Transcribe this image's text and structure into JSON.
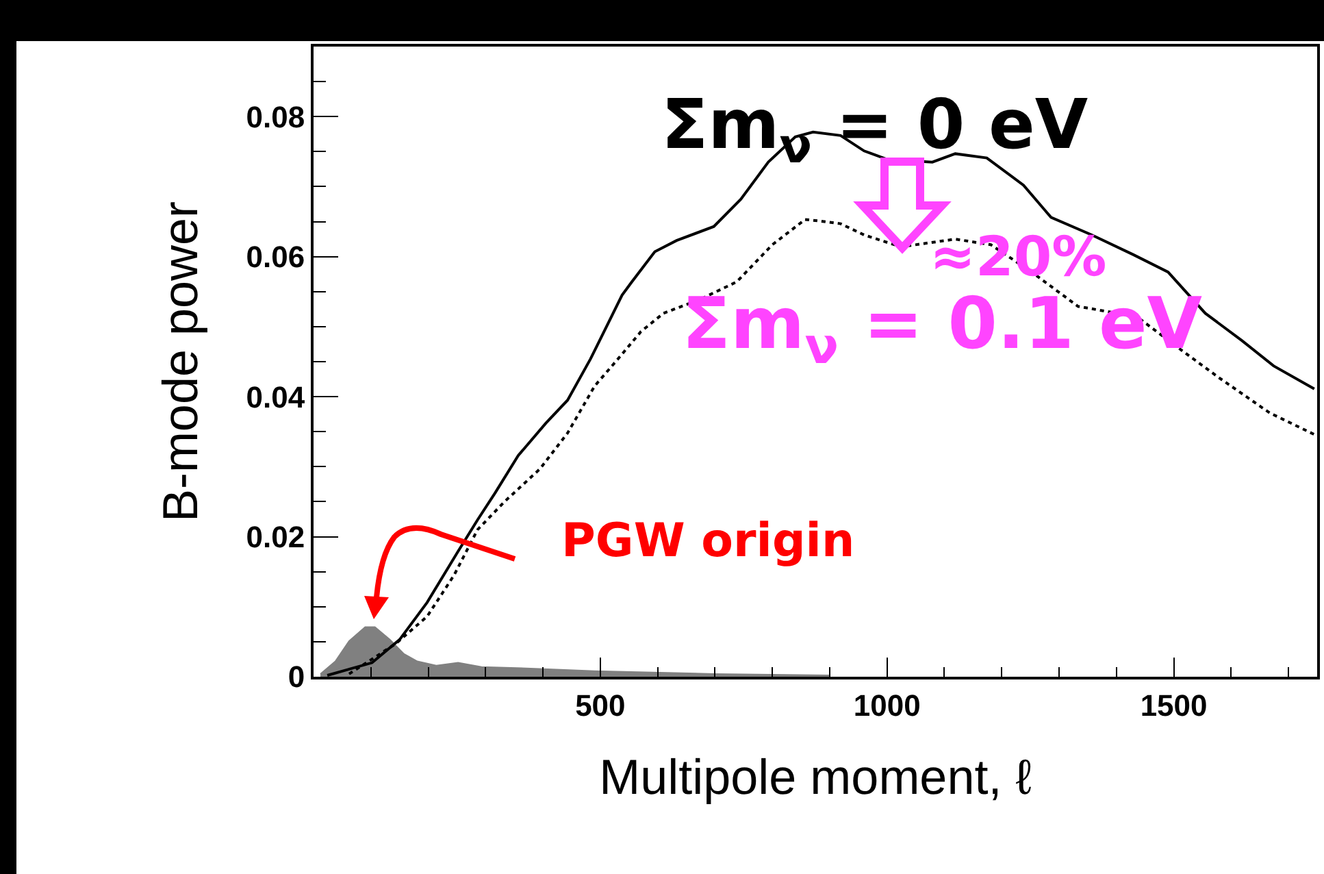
{
  "chart_data": {
    "type": "line",
    "xlabel": "Multipole moment, ℓ",
    "ylabel": "B-mode power",
    "xlim": [
      0,
      1750
    ],
    "ylim": [
      0,
      0.09
    ],
    "xticks": [
      500,
      1000,
      1500
    ],
    "yticks": [
      0,
      0.02,
      0.04,
      0.06,
      0.08
    ],
    "grid": false,
    "legend": false,
    "marker": "none",
    "annotations": [
      "≈20%",
      "PGW origin"
    ],
    "series": [
      {
        "type": "area",
        "color": "#808080",
        "x": [
          12,
          38,
          62,
          90,
          107,
          133,
          157,
          181,
          214,
          252,
          293,
          371,
          490,
          700,
          900
        ],
        "values": [
          0.0004,
          0.0022,
          0.0051,
          0.0071,
          0.0071,
          0.0053,
          0.0033,
          0.0022,
          0.0016,
          0.002,
          0.0014,
          0.0012,
          0.0008,
          0.0004,
          0.0002
        ]
      },
      {
        "name": "Σm$_{ν}$ = 0 eV",
        "color": "#000000",
        "line_style": "solid",
        "x": [
          24,
          102,
          150,
          198,
          252,
          286,
          317,
          357,
          405,
          443,
          483,
          538,
          555,
          595,
          633,
          698,
          745,
          793,
          840,
          871,
          919,
          960,
          1000,
          1079,
          1119,
          1174,
          1238,
          1286,
          1357,
          1429,
          1490,
          1555,
          1619,
          1674,
          1745
        ],
        "values": [
          0.0002,
          0.002,
          0.0053,
          0.0106,
          0.0179,
          0.0224,
          0.0263,
          0.0316,
          0.0362,
          0.0395,
          0.0454,
          0.0545,
          0.0564,
          0.0607,
          0.0623,
          0.0643,
          0.0682,
          0.0735,
          0.0771,
          0.0778,
          0.0773,
          0.0751,
          0.0739,
          0.0735,
          0.0747,
          0.0741,
          0.0702,
          0.0656,
          0.0631,
          0.0603,
          0.0578,
          0.0519,
          0.048,
          0.0444,
          0.0411
        ]
      },
      {
        "name": "Σm$_{ν}$ = 0.1 eV",
        "color": "#000000",
        "line_style": "dashed",
        "x": [
          62,
          143,
          198,
          245,
          286,
          333,
          395,
          443,
          490,
          531,
          571,
          610,
          674,
          738,
          800,
          857,
          881,
          919,
          960,
          1024,
          1119,
          1181,
          1252,
          1333,
          1436,
          1514,
          1579,
          1667,
          1745
        ],
        "values": [
          0.0004,
          0.0047,
          0.0086,
          0.0145,
          0.021,
          0.025,
          0.0297,
          0.0348,
          0.0415,
          0.0454,
          0.0493,
          0.0519,
          0.0539,
          0.0564,
          0.0617,
          0.0653,
          0.0651,
          0.0647,
          0.0631,
          0.0614,
          0.0625,
          0.0617,
          0.0578,
          0.0529,
          0.0514,
          0.0466,
          0.0427,
          0.0377,
          0.0346
        ]
      }
    ]
  }
}
